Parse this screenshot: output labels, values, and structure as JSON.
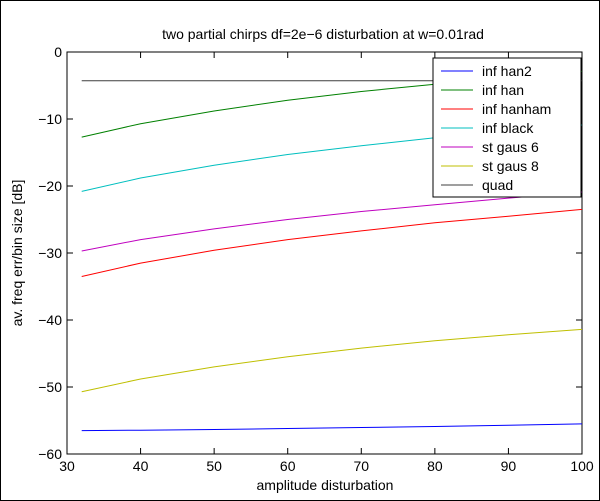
{
  "chart_data": {
    "type": "line",
    "title": "two partial chirps df=2e−6 disturbation at w=0.01rad",
    "xlabel": "amplitude disturbation",
    "ylabel": "av. freq err/bin size [dB]",
    "xlim": [
      30,
      100
    ],
    "ylim": [
      -60,
      0
    ],
    "xticks": [
      30,
      40,
      50,
      60,
      70,
      80,
      90,
      100
    ],
    "yticks": [
      0,
      -10,
      -20,
      -30,
      -40,
      -50,
      -60
    ],
    "xtick_labels": [
      "30",
      "40",
      "50",
      "60",
      "70",
      "80",
      "90",
      "100"
    ],
    "ytick_labels": [
      "0",
      "−10",
      "−20",
      "−30",
      "−40",
      "−50",
      "−60"
    ],
    "grid": false,
    "legend_position": "top-right",
    "series": [
      {
        "name": "inf han2",
        "color": "#0000ff",
        "x": [
          32,
          40,
          50,
          60,
          70,
          80,
          90,
          100
        ],
        "y": [
          -56.5,
          -56.45,
          -56.35,
          -56.2,
          -56.05,
          -55.9,
          -55.7,
          -55.5
        ]
      },
      {
        "name": "inf han",
        "color": "#008000",
        "x": [
          32,
          40,
          50,
          60,
          70,
          80,
          90,
          100
        ],
        "y": [
          -12.7,
          -10.7,
          -8.8,
          -7.2,
          -5.9,
          -4.8,
          -3.8,
          -2.9
        ]
      },
      {
        "name": "inf hanham",
        "color": "#ff0000",
        "x": [
          32,
          40,
          50,
          60,
          70,
          80,
          90,
          100
        ],
        "y": [
          -33.5,
          -31.5,
          -29.6,
          -28.0,
          -26.7,
          -25.5,
          -24.5,
          -23.5
        ]
      },
      {
        "name": "inf black",
        "color": "#00bfbf",
        "x": [
          32,
          40,
          50,
          60,
          70,
          80,
          90,
          100
        ],
        "y": [
          -20.8,
          -18.8,
          -16.9,
          -15.3,
          -14.0,
          -12.8,
          -11.8,
          -10.9
        ]
      },
      {
        "name": "st gaus 6",
        "color": "#bf00bf",
        "x": [
          32,
          40,
          50,
          60,
          70,
          80,
          90,
          100
        ],
        "y": [
          -29.7,
          -28.0,
          -26.4,
          -25.0,
          -23.8,
          -22.8,
          -21.8,
          -20.9
        ]
      },
      {
        "name": "st gaus 8",
        "color": "#bfbf00",
        "x": [
          32,
          40,
          50,
          60,
          70,
          80,
          90,
          100
        ],
        "y": [
          -50.7,
          -48.8,
          -47.0,
          -45.5,
          -44.2,
          -43.1,
          -42.2,
          -41.4
        ]
      },
      {
        "name": "quad",
        "color": "#3f3f3f",
        "x": [
          32,
          100
        ],
        "y": [
          -4.3,
          -4.3
        ]
      }
    ]
  }
}
